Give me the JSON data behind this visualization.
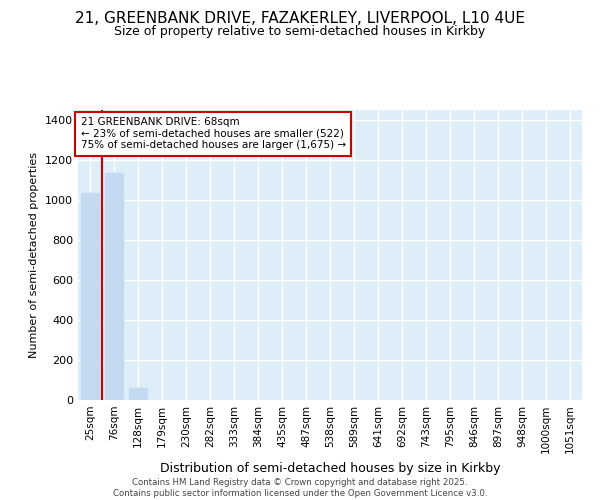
{
  "title_line1": "21, GREENBANK DRIVE, FAZAKERLEY, LIVERPOOL, L10 4UE",
  "title_line2": "Size of property relative to semi-detached houses in Kirkby",
  "xlabel": "Distribution of semi-detached houses by size in Kirkby",
  "ylabel": "Number of semi-detached properties",
  "annotation_title": "21 GREENBANK DRIVE: 68sqm",
  "annotation_line2": "← 23% of semi-detached houses are smaller (522)",
  "annotation_line3": "75% of semi-detached houses are larger (1,675) →",
  "footer_line1": "Contains HM Land Registry data © Crown copyright and database right 2025.",
  "footer_line2": "Contains public sector information licensed under the Open Government Licence v3.0.",
  "categories": [
    "25sqm",
    "76sqm",
    "128sqm",
    "179sqm",
    "230sqm",
    "282sqm",
    "333sqm",
    "384sqm",
    "435sqm",
    "487sqm",
    "538sqm",
    "589sqm",
    "641sqm",
    "692sqm",
    "743sqm",
    "795sqm",
    "846sqm",
    "897sqm",
    "948sqm",
    "1000sqm",
    "1051sqm"
  ],
  "values": [
    1040,
    1140,
    65,
    0,
    0,
    0,
    0,
    0,
    0,
    0,
    0,
    0,
    0,
    0,
    0,
    0,
    0,
    0,
    0,
    0,
    0
  ],
  "bar_color": "#c5daf0",
  "vline_x": 0.5,
  "vline_color": "#cc0000",
  "annotation_box_edgecolor": "#cc0000",
  "bg_color": "#ffffff",
  "plot_bg_color": "#ddeef8",
  "ylim": [
    0,
    1450
  ],
  "yticks": [
    0,
    200,
    400,
    600,
    800,
    1000,
    1200,
    1400
  ],
  "title_fontsize": 11,
  "subtitle_fontsize": 9
}
